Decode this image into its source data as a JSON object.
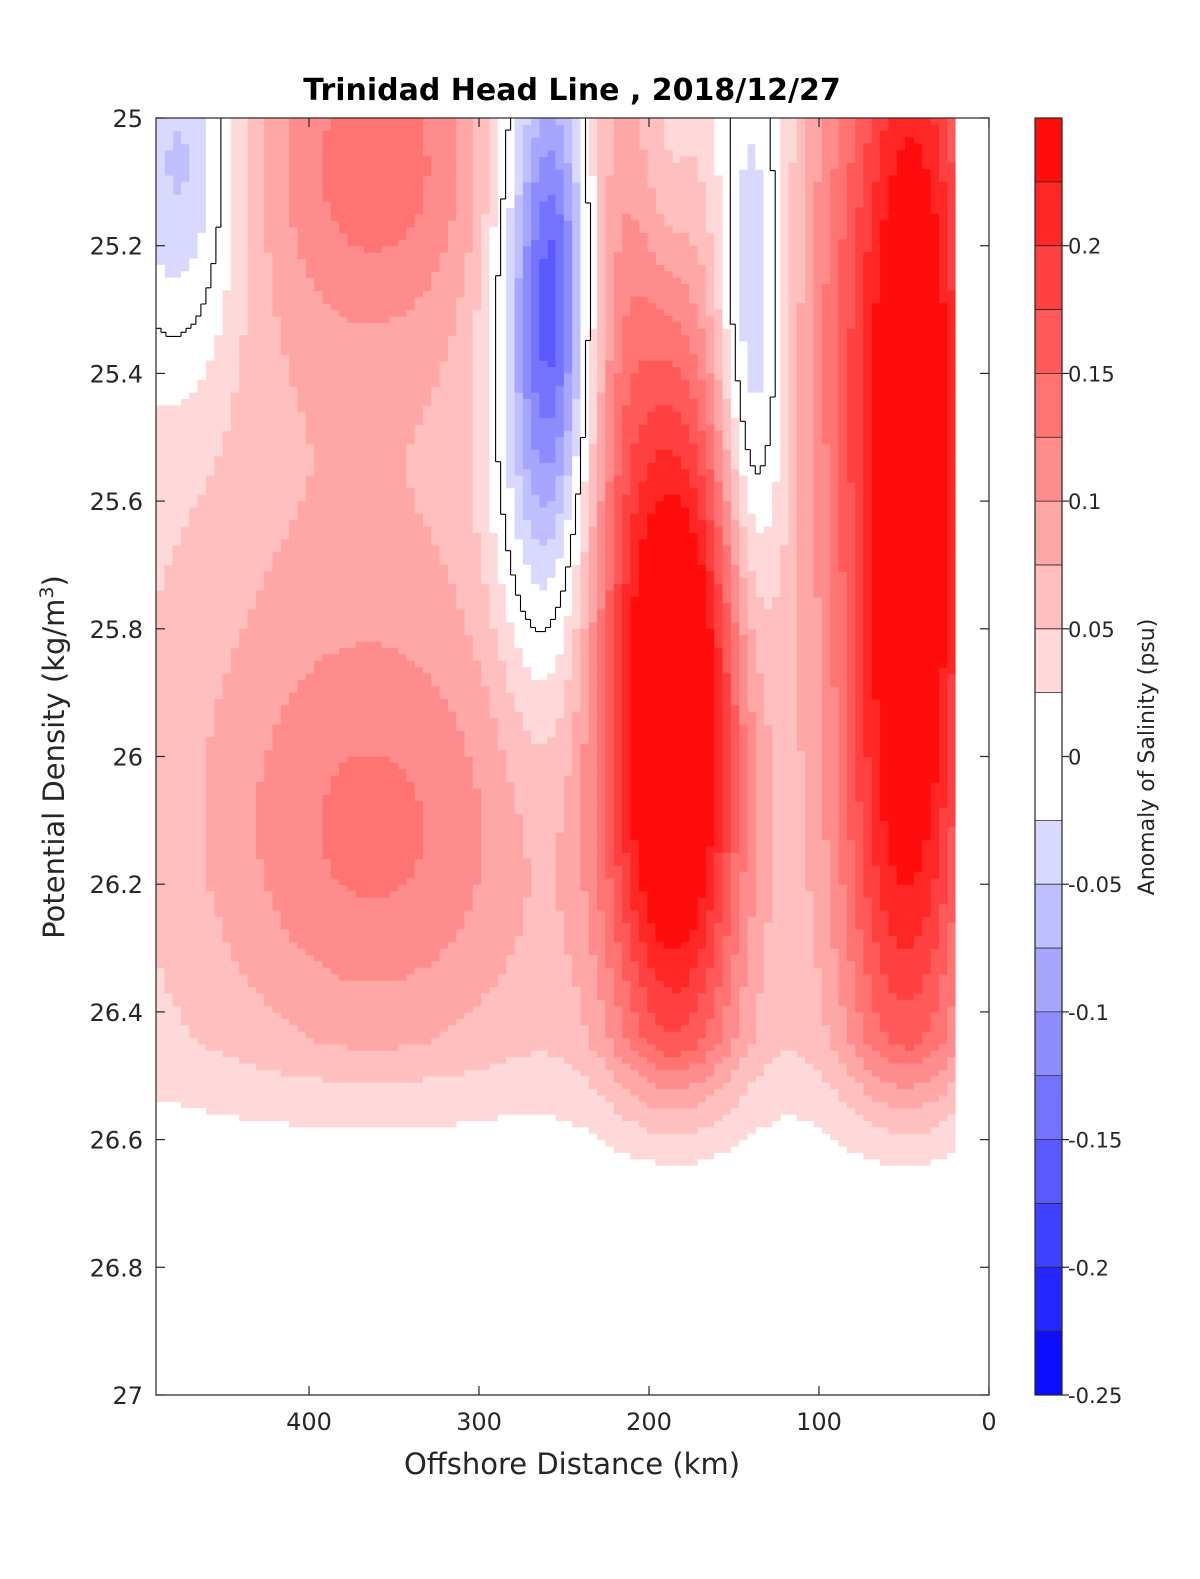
{
  "chart_data": {
    "type": "heatmap",
    "title": "Trinidad Head Line , 2018/12/27",
    "xlabel": "Offshore Distance (km)",
    "ylabel_main": "Potential Density (kg/m",
    "ylabel_sup": "3",
    "ylabel_close": ")",
    "xlim": [
      490,
      0
    ],
    "ylim": [
      27,
      25
    ],
    "x_reversed": true,
    "y_reversed": true,
    "x_ticks": [
      400,
      300,
      200,
      100,
      0
    ],
    "x_tick_labels": [
      "400",
      "300",
      "200",
      "100",
      "0"
    ],
    "y_ticks": [
      25,
      25.2,
      25.4,
      25.6,
      25.8,
      26,
      26.2,
      26.4,
      26.6,
      26.8,
      27
    ],
    "y_tick_labels": [
      "25",
      "25.2",
      "25.4",
      "25.6",
      "25.8",
      "26",
      "26.2",
      "26.4",
      "26.6",
      "26.8",
      "27"
    ],
    "colorbar": {
      "label": "Anomaly of Salinity (psu)",
      "range": [
        -0.25,
        0.25
      ],
      "levels": [
        -0.25,
        -0.225,
        -0.2,
        -0.175,
        -0.15,
        -0.125,
        -0.1,
        -0.075,
        -0.05,
        -0.025,
        0.025,
        0.05,
        0.075,
        0.1,
        0.125,
        0.15,
        0.175,
        0.2,
        0.225,
        0.25
      ],
      "ticks": [
        -0.25,
        -0.2,
        -0.15,
        -0.1,
        -0.05,
        0,
        0.05,
        0.1,
        0.15,
        0.2
      ],
      "tick_labels": [
        "-0.25",
        "-0.2",
        "-0.15",
        "-0.1",
        "-0.05",
        "0",
        "0.05",
        "0.1",
        "0.15",
        "0.2"
      ],
      "colormap": "blue-white-red",
      "cmin": "#0000ff",
      "cmid": "#ffffff",
      "cmax": "#ff0000"
    },
    "data_extent": {
      "x_min": 20,
      "x_max": 490,
      "y_min": 25,
      "y_max": 26.9
    },
    "features": [
      {
        "kind": "negative",
        "x": 262,
        "y": 25.33,
        "sx": 20,
        "sy": 0.35,
        "amp": -0.17
      },
      {
        "kind": "negative",
        "x": 253,
        "y": 25.25,
        "sx": 13,
        "sy": 0.2,
        "amp": -0.06
      },
      {
        "kind": "negative",
        "x": 140,
        "y": 25.35,
        "sx": 14,
        "sy": 0.33,
        "amp": -0.105
      },
      {
        "kind": "negative",
        "x": 475,
        "y": 25.08,
        "sx": 24,
        "sy": 0.22,
        "amp": -0.1
      },
      {
        "kind": "negative",
        "x": 190,
        "y": 25.08,
        "sx": 11,
        "sy": 0.12,
        "amp": -0.02
      },
      {
        "kind": "positive",
        "x": 185,
        "y": 25.95,
        "sx": 30,
        "sy": 0.42,
        "amp": 0.27
      },
      {
        "kind": "positive",
        "x": 45,
        "y": 25.5,
        "sx": 28,
        "sy": 0.65,
        "amp": 0.25
      },
      {
        "kind": "positive",
        "x": 60,
        "y": 26.2,
        "sx": 32,
        "sy": 0.3,
        "amp": 0.06
      },
      {
        "kind": "positive",
        "x": 360,
        "y": 26.15,
        "sx": 75,
        "sy": 0.25,
        "amp": 0.08
      },
      {
        "kind": "positive",
        "x": 360,
        "y": 25.05,
        "sx": 50,
        "sy": 0.2,
        "amp": 0.09
      },
      {
        "kind": "positive",
        "x": 375,
        "y": 25.6,
        "sx": 85,
        "sy": 0.5,
        "amp": 0.04
      },
      {
        "kind": "positive",
        "x": 95,
        "y": 25.3,
        "sx": 20,
        "sy": 0.4,
        "amp": 0.05
      },
      {
        "kind": "positive",
        "x": 220,
        "y": 25.2,
        "sx": 18,
        "sy": 0.35,
        "amp": 0.05
      }
    ]
  }
}
